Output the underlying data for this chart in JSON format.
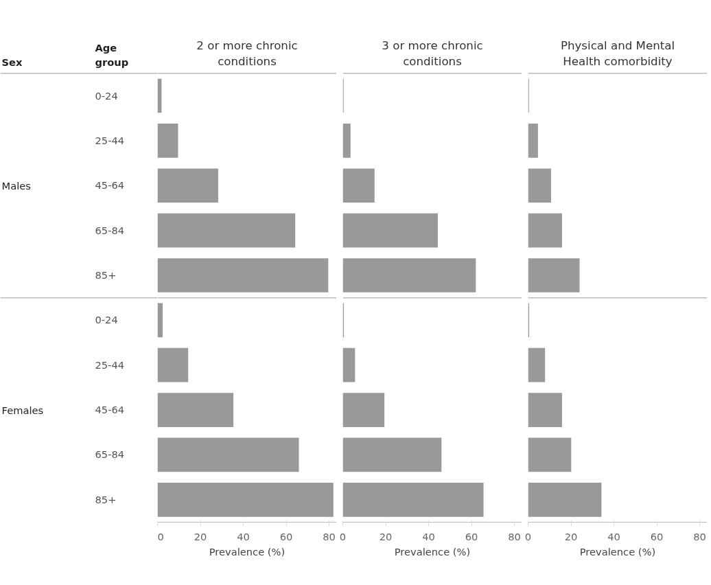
{
  "chart_data": [
    {
      "type": "bar",
      "orientation": "horizontal",
      "title": "2 or more chronic conditions",
      "xlabel": "Prevalence (%)",
      "categories": [
        "0-24",
        "25-44",
        "45-64",
        "65-84",
        "85+",
        "0-24",
        "25-44",
        "45-64",
        "65-84",
        "85+"
      ],
      "series": [
        {
          "color": "#999999",
          "values": [
            1.9,
            9.6,
            28.3,
            64.2,
            79.6,
            2.4,
            14.3,
            35.4,
            65.9,
            82
          ]
        }
      ],
      "xlim": [
        0,
        83.5
      ],
      "xticks": [
        0,
        20,
        40,
        60,
        80
      ],
      "grid": false,
      "annotations": [
        "Sex",
        "Age group",
        "Males",
        "Females"
      ]
    },
    {
      "type": "bar",
      "orientation": "horizontal",
      "title": "3 or more chronic conditions",
      "xlabel": "Prevalence (%)",
      "categories": [
        "0-24",
        "25-44",
        "45-64",
        "65-84",
        "85+",
        "0-24",
        "25-44",
        "45-64",
        "65-84",
        "85+"
      ],
      "series": [
        {
          "color": "#999999",
          "values": [
            0.4,
            3.6,
            14.8,
            44.3,
            62,
            0.5,
            5.7,
            19.4,
            46,
            65.6
          ]
        }
      ],
      "xlim": [
        0,
        83.5
      ],
      "xticks": [
        0,
        20,
        40,
        60,
        80
      ],
      "grid": false,
      "tick_labels": "x"
    },
    {
      "type": "bar",
      "orientation": "horizontal",
      "title": "Physical and Mental Health comorbidity",
      "xlabel": "Prevalence (%)",
      "categories": [
        "0-24",
        "25-44",
        "45-64",
        "65-84",
        "85+",
        "0-24",
        "25-44",
        "45-64",
        "65-84",
        "85+"
      ],
      "series": [
        {
          "color": "#999999",
          "values": [
            0.4,
            4.6,
            10.7,
            15.8,
            24,
            0.5,
            7.9,
            15.8,
            20.1,
            34.2
          ]
        }
      ],
      "xlim": [
        0,
        83.5
      ],
      "xticks": [
        0,
        20,
        40,
        60,
        80
      ],
      "grid": false,
      "tick_labels": "x"
    }
  ]
}
